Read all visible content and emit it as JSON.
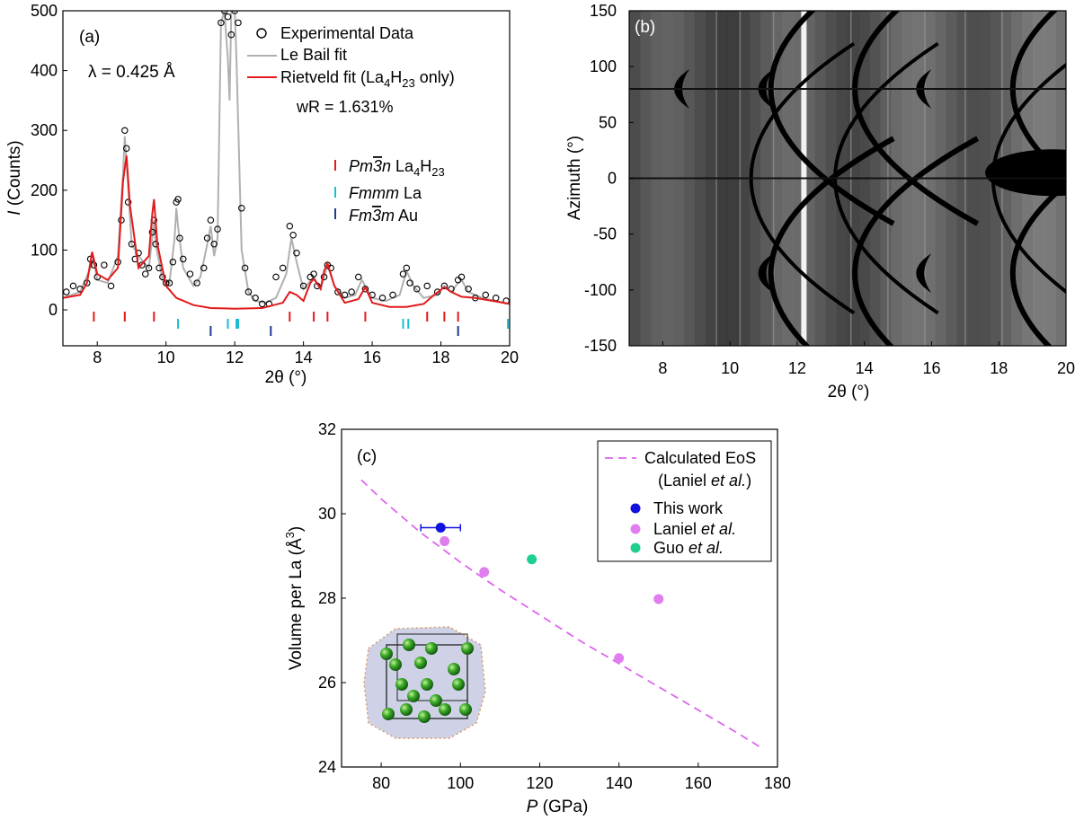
{
  "figure": {
    "panel_a": {
      "label": "(a)",
      "wavelength": "λ = 0.425 Å",
      "ylabel_italic": "I",
      "ylabel_rest": " (Counts)",
      "xlabel": "2θ (°)"
    },
    "panel_b": {
      "label": "(b)",
      "ylabel": "Azimuth (°)",
      "xlabel": "2θ (°)"
    },
    "panel_c": {
      "label": "(c)",
      "ylabel_pre": "Volume per La (Å",
      "ylabel_sup": "3",
      "ylabel_post": ")",
      "xlabel_italic": "P",
      "xlabel_rest": " (GPa)"
    }
  },
  "chart_data": [
    {
      "type": "line",
      "panel": "(a)",
      "xlabel": "2θ (°)",
      "ylabel": "I (Counts)",
      "xlim": [
        7,
        20
      ],
      "ylim": [
        -60,
        500
      ],
      "xticks": [
        "8",
        "10",
        "12",
        "14",
        "16",
        "18",
        "20"
      ],
      "yticks": [
        "0",
        "100",
        "200",
        "300",
        "400",
        "500"
      ],
      "annotations": [
        "(a)",
        "λ = 0.425 Å",
        "wR = 1.631%"
      ],
      "legend": [
        {
          "name": "Experimental Data",
          "style": "open-circle",
          "color": "#000000"
        },
        {
          "name": "Le Bail fit",
          "style": "line",
          "color": "#b0b0b0"
        },
        {
          "name": "Rietveld fit (La4H23 only)",
          "style": "line",
          "color": "#e31a1c"
        }
      ],
      "experimental": {
        "x": [
          7.1,
          7.3,
          7.5,
          7.7,
          7.8,
          7.9,
          8.0,
          8.2,
          8.4,
          8.6,
          8.7,
          8.8,
          8.85,
          8.9,
          9.0,
          9.1,
          9.2,
          9.3,
          9.4,
          9.5,
          9.6,
          9.65,
          9.7,
          9.8,
          9.9,
          10.0,
          10.1,
          10.2,
          10.3,
          10.35,
          10.4,
          10.5,
          10.7,
          10.9,
          11.1,
          11.2,
          11.3,
          11.4,
          11.5,
          11.6,
          11.7,
          11.8,
          11.9,
          12.0,
          12.1,
          12.2,
          12.3,
          12.4,
          12.6,
          12.8,
          13.0,
          13.2,
          13.4,
          13.6,
          13.7,
          13.8,
          14.0,
          14.2,
          14.3,
          14.4,
          14.6,
          14.7,
          14.8,
          15.0,
          15.2,
          15.4,
          15.6,
          15.8,
          16.0,
          16.3,
          16.6,
          16.9,
          17.0,
          17.1,
          17.3,
          17.6,
          17.9,
          18.1,
          18.3,
          18.5,
          18.6,
          18.8,
          19.0,
          19.3,
          19.6,
          19.9
        ],
        "y": [
          30,
          40,
          35,
          45,
          85,
          75,
          55,
          75,
          40,
          80,
          150,
          300,
          270,
          180,
          110,
          85,
          95,
          75,
          60,
          70,
          130,
          150,
          110,
          70,
          55,
          45,
          45,
          80,
          180,
          185,
          120,
          85,
          60,
          45,
          70,
          120,
          150,
          110,
          135,
          480,
          500,
          490,
          460,
          500,
          480,
          170,
          70,
          30,
          20,
          10,
          10,
          55,
          70,
          140,
          125,
          95,
          40,
          55,
          60,
          40,
          55,
          75,
          70,
          30,
          25,
          30,
          55,
          35,
          25,
          20,
          25,
          60,
          70,
          45,
          35,
          40,
          30,
          40,
          35,
          50,
          55,
          35,
          20,
          25,
          20,
          15
        ]
      },
      "le_bail_fit": {
        "x": [
          7.0,
          7.5,
          7.8,
          7.9,
          8.0,
          8.3,
          8.6,
          8.75,
          8.8,
          8.85,
          9.0,
          9.2,
          9.5,
          9.6,
          9.65,
          9.7,
          9.9,
          10.1,
          10.25,
          10.3,
          10.35,
          10.5,
          10.8,
          11.0,
          11.2,
          11.3,
          11.4,
          11.5,
          11.6,
          11.7,
          11.8,
          11.85,
          11.9,
          12.0,
          12.05,
          12.2,
          12.4,
          12.6,
          12.9,
          13.2,
          13.5,
          13.65,
          13.8,
          14.0,
          14.3,
          14.5,
          14.7,
          14.9,
          15.2,
          15.5,
          15.7,
          16.0,
          16.4,
          16.8,
          17.0,
          17.2,
          17.5,
          17.9,
          18.1,
          18.3,
          18.5,
          18.6,
          18.8,
          19.2,
          19.6,
          20.0
        ],
        "y": [
          20,
          30,
          70,
          80,
          50,
          45,
          90,
          230,
          290,
          250,
          110,
          90,
          70,
          120,
          150,
          110,
          50,
          45,
          120,
          170,
          140,
          70,
          40,
          55,
          110,
          140,
          90,
          120,
          480,
          500,
          420,
          350,
          500,
          500,
          420,
          100,
          30,
          15,
          12,
          20,
          60,
          120,
          80,
          35,
          55,
          35,
          75,
          40,
          20,
          25,
          50,
          20,
          15,
          25,
          65,
          40,
          20,
          25,
          40,
          30,
          45,
          50,
          30,
          20,
          15,
          10
        ]
      },
      "rietveld_fit": {
        "x": [
          7.0,
          7.5,
          7.7,
          7.85,
          8.0,
          8.3,
          8.6,
          8.75,
          8.85,
          8.95,
          9.2,
          9.5,
          9.6,
          9.65,
          9.75,
          10.0,
          10.3,
          10.8,
          11.3,
          12.0,
          12.8,
          13.4,
          13.6,
          13.8,
          14.0,
          14.2,
          14.3,
          14.5,
          14.6,
          14.7,
          14.9,
          15.2,
          15.6,
          15.8,
          16.0,
          16.5,
          17.0,
          17.5,
          17.8,
          18.1,
          18.3,
          18.6,
          19.0,
          19.5,
          20.0
        ],
        "y": [
          20,
          25,
          45,
          97,
          60,
          50,
          70,
          215,
          258,
          175,
          70,
          90,
          160,
          185,
          110,
          40,
          20,
          8,
          3,
          2,
          3,
          12,
          30,
          25,
          15,
          45,
          52,
          35,
          65,
          78,
          40,
          12,
          18,
          38,
          12,
          5,
          5,
          10,
          25,
          38,
          30,
          22,
          20,
          15,
          10
        ]
      },
      "markers": [
        {
          "name": "Pm3̄n La4H23",
          "color": "#e31a1c",
          "positions": [
            7.9,
            8.8,
            9.65,
            13.6,
            14.3,
            14.7,
            15.8,
            17.6,
            18.1,
            18.5
          ]
        },
        {
          "name": "Fmmm La",
          "color": "#17becf",
          "positions": [
            10.35,
            11.8,
            12.05,
            12.1,
            16.9,
            17.05,
            19.95
          ]
        },
        {
          "name": "Fm3̄m Au",
          "color": "#1f3a93",
          "positions": [
            11.3,
            13.05,
            18.5
          ]
        }
      ],
      "marker_labels": [
        {
          "italic": "Pm3n",
          "overline_char": "3",
          "formula": "La",
          "sub1": "4",
          "mid": "H",
          "sub2": "23"
        },
        {
          "italic": "Fmmm",
          "formula": "La"
        },
        {
          "italic": "Fm3m",
          "overline_char": "3",
          "formula": "Au"
        }
      ],
      "legend_text": {
        "experimental": "Experimental Data",
        "lebail": "Le Bail fit",
        "rietveld_pre": "Rietveld fit (La",
        "rietveld_sub1": "4",
        "rietveld_mid": "H",
        "rietveld_sub2": "23",
        "rietveld_post": " only)",
        "wr": "wR = 1.631%"
      }
    },
    {
      "type": "heatmap",
      "panel": "(b)",
      "xlabel": "2θ (°)",
      "ylabel": "Azimuth (°)",
      "xlim": [
        7,
        20
      ],
      "ylim": [
        -150,
        150
      ],
      "xticks": [
        "8",
        "10",
        "12",
        "14",
        "16",
        "18",
        "20"
      ],
      "yticks": [
        "150",
        "100",
        "50",
        "0",
        "-50",
        "-100",
        "-150"
      ],
      "colormap": "grayscale",
      "bright_line_at_2theta": 12.2,
      "dark_arc_vertices_2theta": [
        -1,
        8.1,
        10.6,
        15.3,
        19.5
      ],
      "arc_rows_azimuth": [
        80,
        -85
      ]
    },
    {
      "type": "scatter",
      "panel": "(c)",
      "xlabel": "P (GPa)",
      "ylabel": "Volume per La (Å3)",
      "xlim": [
        70,
        180
      ],
      "ylim": [
        24,
        32
      ],
      "xticks": [
        "80",
        "100",
        "120",
        "140",
        "160",
        "180"
      ],
      "yticks": [
        "24",
        "26",
        "28",
        "30",
        "32"
      ],
      "legend_placement": "top-right",
      "eos_curve": {
        "name_line1": "Calculated EoS",
        "name_line2_pre": "(Laniel ",
        "name_line2_italic": "et al.",
        "name_line2_post": ")",
        "color": "#dd66ee",
        "style": "dashed",
        "x": [
          75,
          80,
          85,
          90,
          95,
          100,
          110,
          120,
          130,
          140,
          150,
          160,
          170,
          176
        ],
        "y": [
          30.8,
          30.35,
          29.95,
          29.55,
          29.2,
          28.85,
          28.2,
          27.6,
          27.0,
          26.45,
          25.9,
          25.35,
          24.8,
          24.45
        ]
      },
      "series": [
        {
          "name_pre": "This work",
          "name_italic": "",
          "color": "#1212e0",
          "points": [
            {
              "x": 95,
              "y": 29.67,
              "xerr": 5
            }
          ]
        },
        {
          "name_pre": "Laniel ",
          "name_italic": "et al.",
          "color": "#e07ef0",
          "points": [
            {
              "x": 96,
              "y": 29.35
            },
            {
              "x": 106,
              "y": 28.62
            },
            {
              "x": 140,
              "y": 26.58
            },
            {
              "x": 150,
              "y": 27.98
            }
          ]
        },
        {
          "name_pre": "Guo ",
          "name_italic": "et al.",
          "color": "#1fcf8f",
          "points": [
            {
              "x": 118,
              "y": 28.92
            }
          ]
        }
      ],
      "inset": "crystal structure (green La spheres in cubic cell)"
    }
  ]
}
